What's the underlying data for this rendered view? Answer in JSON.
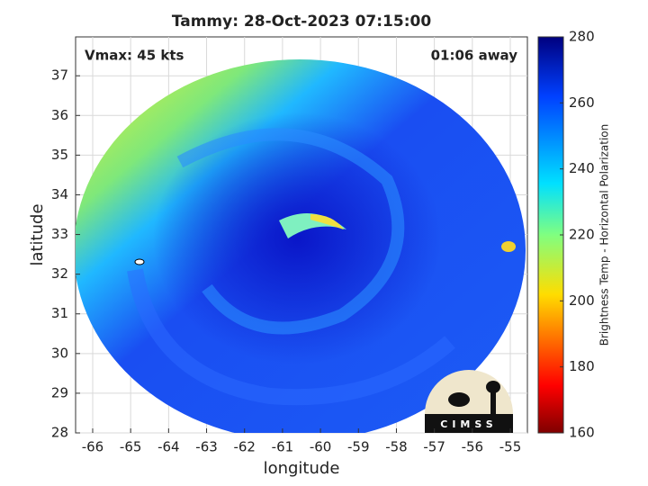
{
  "chart_data": {
    "type": "image",
    "title": "Tammy: 28-Oct-2023 07:15:00",
    "annotations": [
      "Vmax: 45 kts",
      "01:06 away"
    ],
    "x_label": "longitude",
    "y_label": "latitude",
    "xlim": [
      -66.45,
      -54.55
    ],
    "ylim": [
      28,
      37.98
    ],
    "xticks": [
      -66,
      -65,
      -64,
      -63,
      -62,
      -61,
      -60,
      -59,
      -58,
      -57,
      -56,
      -55
    ],
    "yticks": [
      28,
      29,
      30,
      31,
      32,
      33,
      34,
      35,
      36,
      37
    ],
    "grid": true,
    "colorbar": {
      "label": "Brightness Temp - Horizontal Polarization",
      "lim": [
        160,
        280
      ],
      "ticks": [
        160,
        180,
        200,
        220,
        240,
        260,
        280
      ]
    },
    "logo": "CIMSS"
  }
}
